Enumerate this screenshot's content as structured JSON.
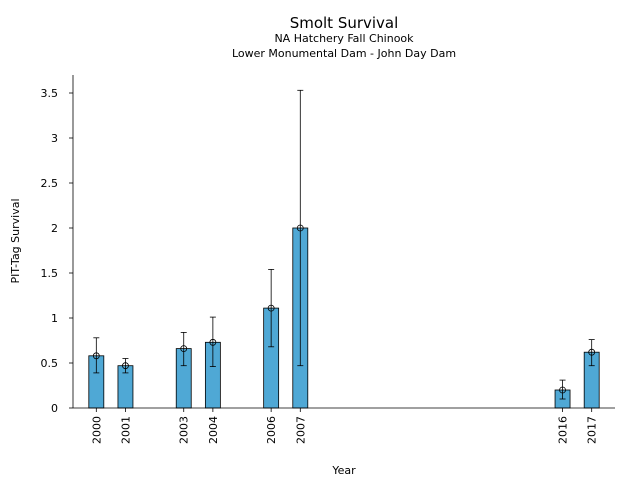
{
  "chart_data": {
    "type": "bar",
    "title": "Smolt Survival",
    "subtitle_lines": [
      "NA Hatchery Fall Chinook",
      "Lower Monumental Dam - John Day Dam"
    ],
    "xlabel": "Year",
    "ylabel": "PIT-Tag Survival",
    "ylim": [
      0,
      3.7
    ],
    "xlim": [
      1999.2,
      2017.8
    ],
    "yticks": [
      0,
      0.5,
      1,
      1.5,
      2,
      2.5,
      3,
      3.5
    ],
    "ytick_labels": [
      "0",
      "0.5",
      "1",
      "1.5",
      "2",
      "2.5",
      "3",
      "3.5"
    ],
    "bar_color": "#4fa8d5",
    "edge_color": "#000000",
    "points": [
      {
        "year": 2000,
        "label": "2000",
        "value": 0.58,
        "lower": 0.39,
        "upper": 0.78
      },
      {
        "year": 2001,
        "label": "2001",
        "value": 0.47,
        "lower": 0.39,
        "upper": 0.55
      },
      {
        "year": 2003,
        "label": "2003",
        "value": 0.66,
        "lower": 0.47,
        "upper": 0.84
      },
      {
        "year": 2004,
        "label": "2004",
        "value": 0.73,
        "lower": 0.46,
        "upper": 1.01
      },
      {
        "year": 2006,
        "label": "2006",
        "value": 1.11,
        "lower": 0.68,
        "upper": 1.54
      },
      {
        "year": 2007,
        "label": "2007",
        "value": 2.0,
        "lower": 0.47,
        "upper": 3.53
      },
      {
        "year": 2016,
        "label": "2016",
        "value": 0.2,
        "lower": 0.1,
        "upper": 0.31
      },
      {
        "year": 2017,
        "label": "2017",
        "value": 0.62,
        "lower": 0.47,
        "upper": 0.76
      }
    ]
  }
}
